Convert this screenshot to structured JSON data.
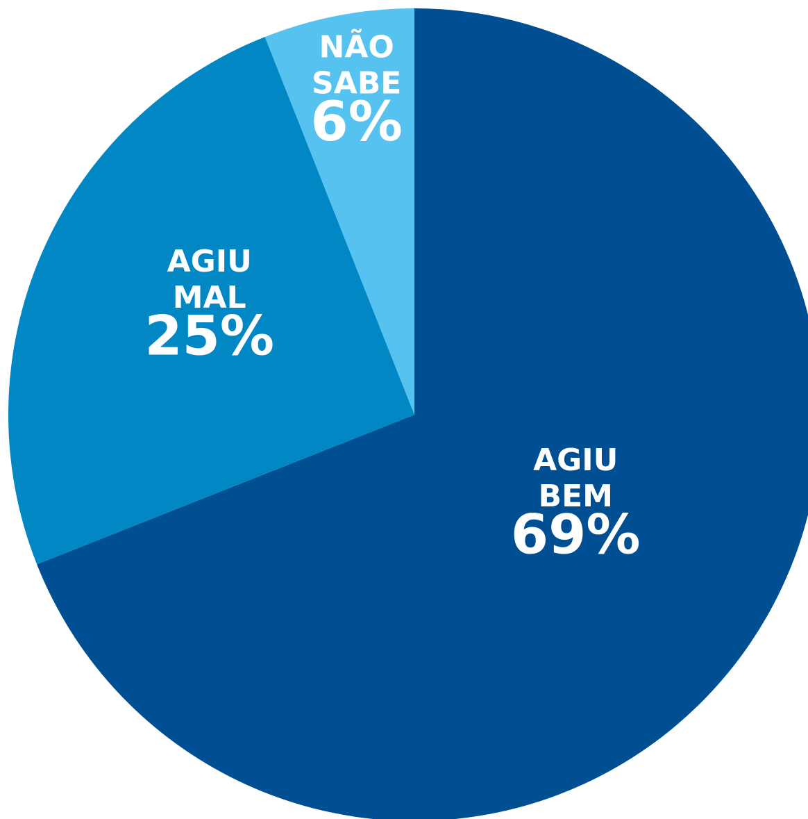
{
  "chart_data": {
    "type": "pie",
    "categories": [
      "AGIU BEM",
      "AGIU MAL",
      "NÃO SABE"
    ],
    "values": [
      69,
      25,
      6
    ],
    "value_labels": [
      "69%",
      "25%",
      "6%"
    ],
    "colors": [
      "#004f93",
      "#0087c4",
      "#55c2ef"
    ]
  }
}
